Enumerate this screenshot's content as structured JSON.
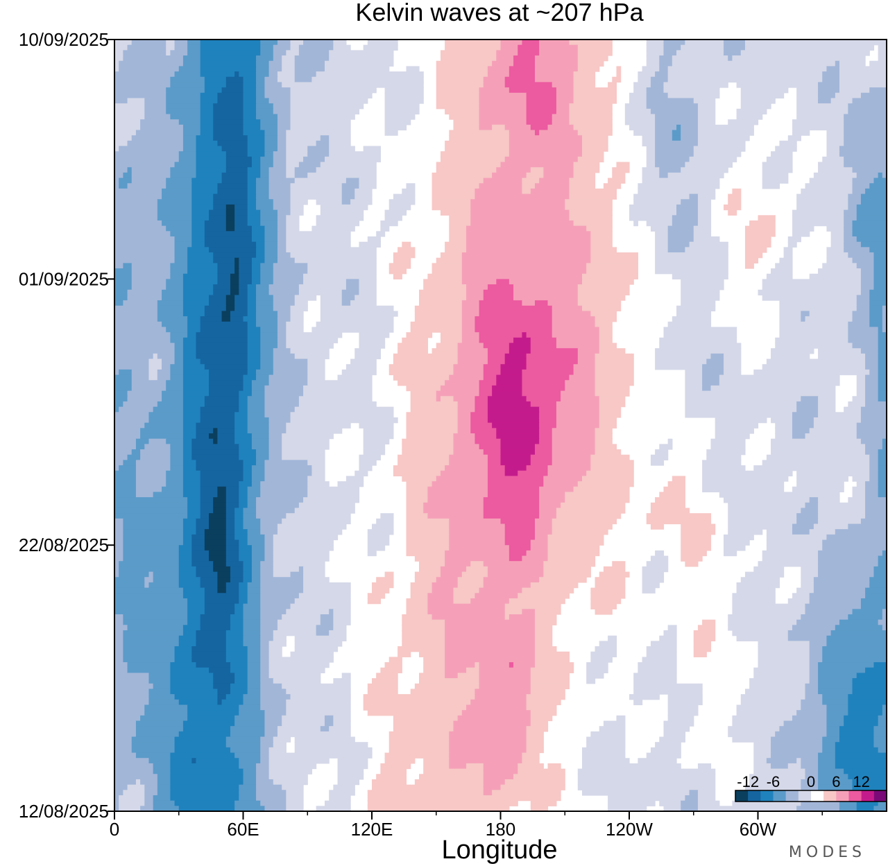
{
  "chart_data": {
    "type": "heatmap",
    "title": "Kelvin waves at ~207 hPa",
    "xlabel": "Longitude",
    "ylabel": "",
    "x_ticks": [
      "0",
      "60E",
      "120E",
      "180",
      "120W",
      "60W"
    ],
    "x_tick_values": [
      0,
      60,
      120,
      180,
      240,
      300
    ],
    "xlim": [
      0,
      360
    ],
    "y_ticks": [
      "10/09/2025",
      "01/09/2025",
      "22/08/2025",
      "12/08/2025"
    ],
    "y_tick_values": [
      29,
      20,
      10,
      0
    ],
    "ylim": [
      0,
      29
    ],
    "colorbar": {
      "labels": [
        "-12",
        "-6",
        "0",
        "6",
        "12"
      ],
      "label_values": [
        -12,
        -6,
        0,
        6,
        12
      ],
      "levels": [
        -15,
        -12,
        -9,
        -6,
        -3,
        -1,
        1,
        3,
        6,
        9,
        12,
        15
      ],
      "colors": [
        "#0b3f5e",
        "#1565a0",
        "#1f82bd",
        "#5b9bc9",
        "#a2b6d8",
        "#d5d8e8",
        "#ffffff",
        "#f7c8c6",
        "#f5a0b8",
        "#ec5aa0",
        "#c41b8c",
        "#7a0a78"
      ]
    },
    "features": [
      {
        "sign": "negative",
        "center_lon": 50,
        "description": "strong negative band, peak about -12 near 55E around 01/09/2025"
      },
      {
        "sign": "positive",
        "center_lon": 180,
        "description": "broad positive band between 120E and 150W, peak about 12 near 180 around 26/08/2025"
      },
      {
        "sign": "negative",
        "center_lon": 355,
        "description": "negative region near 0 / 360 longitude at start of period"
      }
    ]
  },
  "brand": "MODES"
}
